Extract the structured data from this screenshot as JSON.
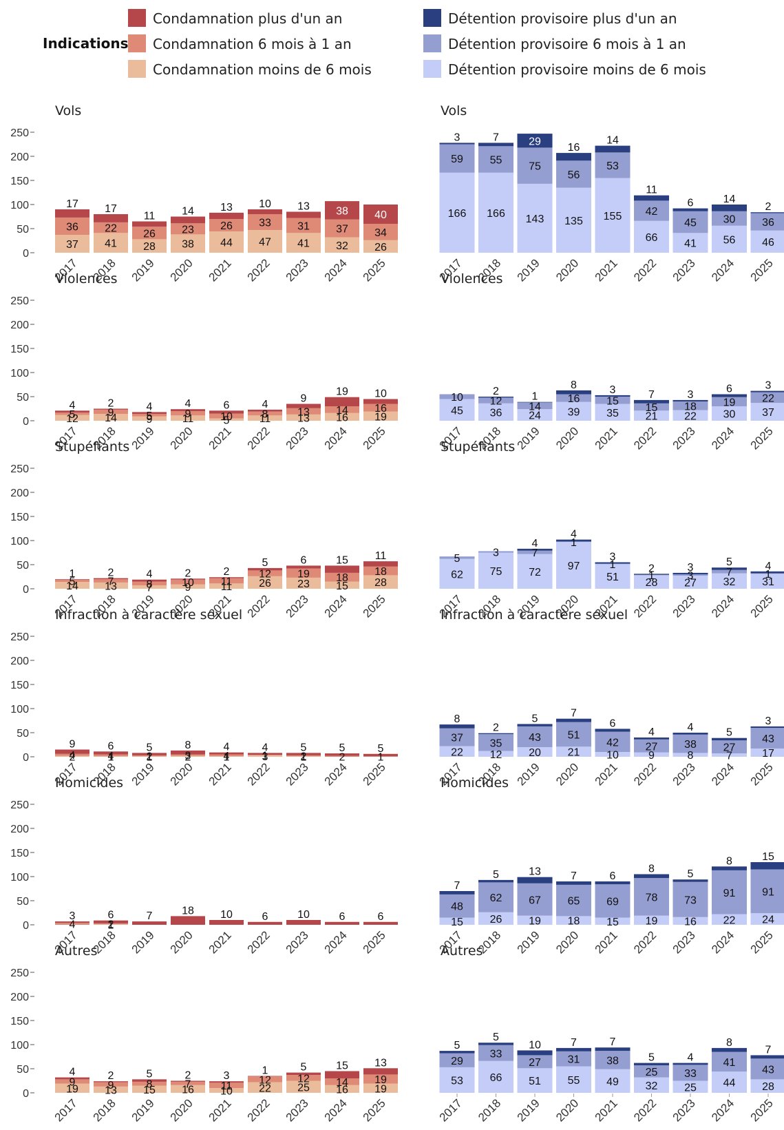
{
  "legend": {
    "title": "Indications",
    "items": [
      {
        "label": "Condamnation plus d'un an",
        "color": "#b5474a"
      },
      {
        "label": "Condamnation 6 mois à 1 an",
        "color": "#de8a76"
      },
      {
        "label": "Condamnation moins de 6 mois",
        "color": "#ebbc9b"
      },
      {
        "label": "Détention provisoire plus d'un an",
        "color": "#2a3f80"
      },
      {
        "label": "Détention provisoire 6 mois à 1 an",
        "color": "#959ed0"
      },
      {
        "label": "Détention provisoire moins de 6 mois",
        "color": "#c4cdf8"
      }
    ]
  },
  "chart_data": [
    {
      "type": "bar",
      "stacked": true,
      "title": "Vols",
      "categories": [
        "2017",
        "2018",
        "2019",
        "2020",
        "2021",
        "2022",
        "2023",
        "2024",
        "2025"
      ],
      "ylim": [
        0,
        250
      ],
      "yticks": [
        0,
        50,
        100,
        150,
        200,
        250
      ],
      "series": [
        {
          "name": "Condamnation moins de 6 mois",
          "values": [
            37,
            41,
            28,
            38,
            44,
            47,
            41,
            32,
            26
          ]
        },
        {
          "name": "Condamnation 6 mois à 1 an",
          "values": [
            36,
            22,
            26,
            23,
            26,
            33,
            31,
            37,
            34
          ]
        },
        {
          "name": "Condamnation plus d'un an",
          "values": [
            17,
            17,
            11,
            14,
            13,
            10,
            13,
            38,
            40
          ]
        }
      ]
    },
    {
      "type": "bar",
      "stacked": true,
      "title": "Vols",
      "categories": [
        "2017",
        "2018",
        "2019",
        "2020",
        "2021",
        "2022",
        "2023",
        "2024",
        "2025"
      ],
      "ylim": [
        0,
        250
      ],
      "series": [
        {
          "name": "Détention provisoire moins de 6 mois",
          "values": [
            166,
            166,
            143,
            135,
            155,
            66,
            41,
            56,
            46
          ]
        },
        {
          "name": "Détention provisoire 6 mois à 1 an",
          "values": [
            59,
            55,
            75,
            56,
            53,
            42,
            45,
            30,
            36
          ]
        },
        {
          "name": "Détention provisoire plus d'un an",
          "values": [
            3,
            7,
            29,
            16,
            14,
            11,
            6,
            14,
            2
          ]
        }
      ]
    },
    {
      "type": "bar",
      "stacked": true,
      "title": "Violences",
      "categories": [
        "2017",
        "2018",
        "2019",
        "2020",
        "2021",
        "2022",
        "2023",
        "2024",
        "2025"
      ],
      "ylim": [
        0,
        250
      ],
      "yticks": [
        0,
        50,
        100,
        150,
        200,
        250
      ],
      "series": [
        {
          "name": "Condamnation moins de 6 mois",
          "values": [
            12,
            14,
            9,
            11,
            5,
            11,
            13,
            16,
            19
          ]
        },
        {
          "name": "Condamnation 6 mois à 1 an",
          "values": [
            5,
            9,
            5,
            9,
            10,
            8,
            13,
            14,
            16
          ]
        },
        {
          "name": "Condamnation plus d'un an",
          "values": [
            4,
            2,
            4,
            4,
            6,
            4,
            9,
            19,
            10
          ]
        }
      ]
    },
    {
      "type": "bar",
      "stacked": true,
      "title": "Violences",
      "categories": [
        "2017",
        "2018",
        "2019",
        "2020",
        "2021",
        "2022",
        "2023",
        "2024",
        "2025"
      ],
      "ylim": [
        0,
        250
      ],
      "series": [
        {
          "name": "Détention provisoire moins de 6 mois",
          "values": [
            45,
            36,
            24,
            39,
            35,
            21,
            22,
            30,
            37
          ]
        },
        {
          "name": "Détention provisoire 6 mois à 1 an",
          "values": [
            10,
            12,
            14,
            16,
            15,
            15,
            18,
            19,
            22
          ]
        },
        {
          "name": "Détention provisoire plus d'un an",
          "values": [
            0,
            2,
            1,
            8,
            3,
            7,
            3,
            6,
            3
          ]
        }
      ]
    },
    {
      "type": "bar",
      "stacked": true,
      "title": "Stupéfiants",
      "categories": [
        "2017",
        "2018",
        "2019",
        "2020",
        "2021",
        "2022",
        "2023",
        "2024",
        "2025"
      ],
      "ylim": [
        0,
        250
      ],
      "yticks": [
        0,
        50,
        100,
        150,
        200,
        250
      ],
      "series": [
        {
          "name": "Condamnation moins de 6 mois",
          "values": [
            14,
            13,
            7,
            9,
            11,
            26,
            23,
            15,
            28
          ]
        },
        {
          "name": "Condamnation 6 mois à 1 an",
          "values": [
            5,
            7,
            8,
            10,
            11,
            12,
            19,
            18,
            18
          ]
        },
        {
          "name": "Condamnation plus d'un an",
          "values": [
            1,
            2,
            4,
            2,
            2,
            5,
            6,
            15,
            11
          ]
        }
      ]
    },
    {
      "type": "bar",
      "stacked": true,
      "title": "Stupéfiants",
      "categories": [
        "2017",
        "2018",
        "2019",
        "2020",
        "2021",
        "2022",
        "2023",
        "2024",
        "2025"
      ],
      "ylim": [
        0,
        250
      ],
      "series": [
        {
          "name": "Détention provisoire moins de 6 mois",
          "values": [
            62,
            75,
            72,
            97,
            51,
            28,
            27,
            32,
            31
          ]
        },
        {
          "name": "Détention provisoire 6 mois à 1 an",
          "values": [
            5,
            3,
            7,
            1,
            1,
            1,
            3,
            7,
            1
          ]
        },
        {
          "name": "Détention provisoire plus d'un an",
          "values": [
            0,
            0,
            4,
            4,
            3,
            2,
            3,
            5,
            4
          ]
        }
      ]
    },
    {
      "type": "bar",
      "stacked": true,
      "title": "Infraction à caractère sexuel",
      "categories": [
        "2017",
        "2018",
        "2019",
        "2020",
        "2021",
        "2022",
        "2023",
        "2024",
        "2025"
      ],
      "ylim": [
        0,
        250
      ],
      "yticks": [
        0,
        50,
        100,
        150,
        200,
        250
      ],
      "series": [
        {
          "name": "Condamnation moins de 6 mois",
          "values": [
            2,
            1,
            1,
            2,
            1,
            3,
            1,
            0,
            0
          ]
        },
        {
          "name": "Condamnation 6 mois à 1 an",
          "values": [
            4,
            4,
            2,
            3,
            4,
            1,
            2,
            2,
            1
          ]
        },
        {
          "name": "Condamnation plus d'un an",
          "values": [
            9,
            6,
            5,
            8,
            4,
            4,
            5,
            5,
            5
          ]
        }
      ]
    },
    {
      "type": "bar",
      "stacked": true,
      "title": "Infraction à caractère sexuel",
      "categories": [
        "2017",
        "2018",
        "2019",
        "2020",
        "2021",
        "2022",
        "2023",
        "2024",
        "2025"
      ],
      "ylim": [
        0,
        250
      ],
      "series": [
        {
          "name": "Détention provisoire moins de 6 mois",
          "values": [
            22,
            12,
            20,
            21,
            10,
            9,
            8,
            7,
            17
          ]
        },
        {
          "name": "Détention provisoire 6 mois à 1 an",
          "values": [
            37,
            35,
            43,
            51,
            42,
            27,
            38,
            27,
            43
          ]
        },
        {
          "name": "Détention provisoire plus d'un an",
          "values": [
            8,
            2,
            5,
            7,
            6,
            4,
            4,
            5,
            3
          ]
        }
      ]
    },
    {
      "type": "bar",
      "stacked": true,
      "title": "Homicides",
      "categories": [
        "2017",
        "2018",
        "2019",
        "2020",
        "2021",
        "2022",
        "2023",
        "2024",
        "2025"
      ],
      "ylim": [
        0,
        250
      ],
      "yticks": [
        0,
        50,
        100,
        150,
        200,
        250
      ],
      "series": [
        {
          "name": "Condamnation moins de 6 mois",
          "values": [
            0,
            1,
            0,
            0,
            0,
            0,
            0,
            0,
            0
          ]
        },
        {
          "name": "Condamnation 6 mois à 1 an",
          "values": [
            4,
            2,
            0,
            0,
            0,
            0,
            0,
            0,
            0
          ]
        },
        {
          "name": "Condamnation plus d'un an",
          "values": [
            3,
            6,
            7,
            18,
            10,
            6,
            10,
            6,
            6
          ]
        }
      ]
    },
    {
      "type": "bar",
      "stacked": true,
      "title": "Homicides",
      "categories": [
        "2017",
        "2018",
        "2019",
        "2020",
        "2021",
        "2022",
        "2023",
        "2024",
        "2025"
      ],
      "ylim": [
        0,
        250
      ],
      "series": [
        {
          "name": "Détention provisoire moins de 6 mois",
          "values": [
            15,
            26,
            19,
            18,
            15,
            19,
            16,
            22,
            24
          ]
        },
        {
          "name": "Détention provisoire 6 mois à 1 an",
          "values": [
            48,
            62,
            67,
            65,
            69,
            78,
            73,
            91,
            91
          ]
        },
        {
          "name": "Détention provisoire plus d'un an",
          "values": [
            7,
            5,
            13,
            7,
            6,
            8,
            5,
            8,
            15
          ]
        }
      ]
    },
    {
      "type": "bar",
      "stacked": true,
      "title": "Autres",
      "categories": [
        "2017",
        "2018",
        "2019",
        "2020",
        "2021",
        "2022",
        "2023",
        "2024",
        "2025"
      ],
      "ylim": [
        0,
        250
      ],
      "yticks": [
        0,
        50,
        100,
        150,
        200,
        250
      ],
      "series": [
        {
          "name": "Condamnation moins de 6 mois",
          "values": [
            19,
            13,
            15,
            16,
            10,
            22,
            25,
            16,
            19
          ]
        },
        {
          "name": "Condamnation 6 mois à 1 an",
          "values": [
            9,
            9,
            8,
            7,
            11,
            12,
            12,
            14,
            19
          ]
        },
        {
          "name": "Condamnation plus d'un an",
          "values": [
            4,
            2,
            5,
            2,
            3,
            1,
            5,
            15,
            13
          ]
        }
      ]
    },
    {
      "type": "bar",
      "stacked": true,
      "title": "Autres",
      "categories": [
        "2017",
        "2018",
        "2019",
        "2020",
        "2021",
        "2022",
        "2023",
        "2024",
        "2025"
      ],
      "ylim": [
        0,
        250
      ],
      "series": [
        {
          "name": "Détention provisoire moins de 6 mois",
          "values": [
            53,
            66,
            51,
            55,
            49,
            32,
            25,
            44,
            28
          ]
        },
        {
          "name": "Détention provisoire 6 mois à 1 an",
          "values": [
            29,
            33,
            27,
            31,
            38,
            25,
            33,
            41,
            43
          ]
        },
        {
          "name": "Détention provisoire plus d'un an",
          "values": [
            5,
            5,
            10,
            7,
            7,
            5,
            4,
            8,
            7
          ]
        }
      ]
    }
  ]
}
